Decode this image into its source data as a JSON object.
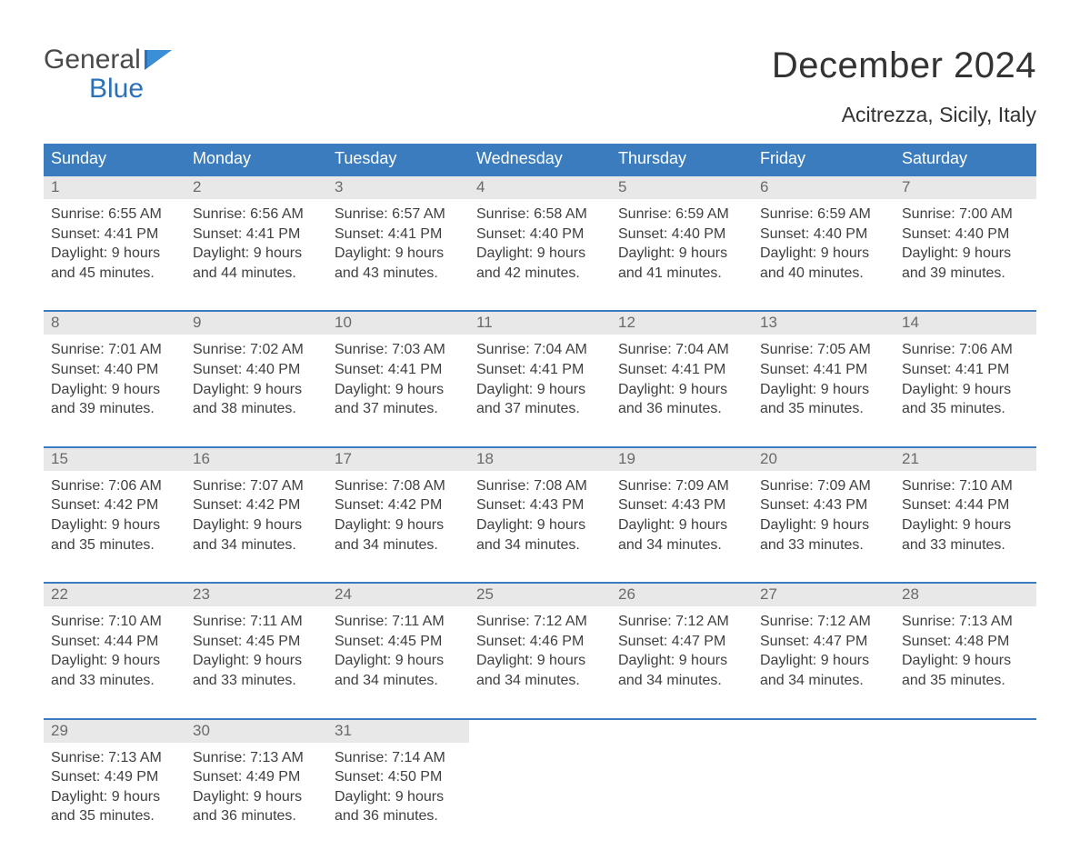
{
  "logo": {
    "line1": "General",
    "line2": "Blue"
  },
  "header": {
    "month_title": "December 2024",
    "location": "Acitrezza, Sicily, Italy"
  },
  "colors": {
    "header_bg": "#3a7cbd",
    "header_text": "#ffffff",
    "row_border": "#3a7cbd",
    "daynum_bg": "#e8e8e8",
    "daynum_text": "#6a6a6a",
    "body_text": "#404040",
    "logo_gray": "#4a4a4a",
    "logo_blue": "#2a71b8",
    "page_bg": "#ffffff"
  },
  "calendar": {
    "day_labels": [
      "Sunday",
      "Monday",
      "Tuesday",
      "Wednesday",
      "Thursday",
      "Friday",
      "Saturday"
    ],
    "weeks": [
      [
        {
          "n": "1",
          "sunrise": "Sunrise: 6:55 AM",
          "sunset": "Sunset: 4:41 PM",
          "dl1": "Daylight: 9 hours",
          "dl2": "and 45 minutes."
        },
        {
          "n": "2",
          "sunrise": "Sunrise: 6:56 AM",
          "sunset": "Sunset: 4:41 PM",
          "dl1": "Daylight: 9 hours",
          "dl2": "and 44 minutes."
        },
        {
          "n": "3",
          "sunrise": "Sunrise: 6:57 AM",
          "sunset": "Sunset: 4:41 PM",
          "dl1": "Daylight: 9 hours",
          "dl2": "and 43 minutes."
        },
        {
          "n": "4",
          "sunrise": "Sunrise: 6:58 AM",
          "sunset": "Sunset: 4:40 PM",
          "dl1": "Daylight: 9 hours",
          "dl2": "and 42 minutes."
        },
        {
          "n": "5",
          "sunrise": "Sunrise: 6:59 AM",
          "sunset": "Sunset: 4:40 PM",
          "dl1": "Daylight: 9 hours",
          "dl2": "and 41 minutes."
        },
        {
          "n": "6",
          "sunrise": "Sunrise: 6:59 AM",
          "sunset": "Sunset: 4:40 PM",
          "dl1": "Daylight: 9 hours",
          "dl2": "and 40 minutes."
        },
        {
          "n": "7",
          "sunrise": "Sunrise: 7:00 AM",
          "sunset": "Sunset: 4:40 PM",
          "dl1": "Daylight: 9 hours",
          "dl2": "and 39 minutes."
        }
      ],
      [
        {
          "n": "8",
          "sunrise": "Sunrise: 7:01 AM",
          "sunset": "Sunset: 4:40 PM",
          "dl1": "Daylight: 9 hours",
          "dl2": "and 39 minutes."
        },
        {
          "n": "9",
          "sunrise": "Sunrise: 7:02 AM",
          "sunset": "Sunset: 4:40 PM",
          "dl1": "Daylight: 9 hours",
          "dl2": "and 38 minutes."
        },
        {
          "n": "10",
          "sunrise": "Sunrise: 7:03 AM",
          "sunset": "Sunset: 4:41 PM",
          "dl1": "Daylight: 9 hours",
          "dl2": "and 37 minutes."
        },
        {
          "n": "11",
          "sunrise": "Sunrise: 7:04 AM",
          "sunset": "Sunset: 4:41 PM",
          "dl1": "Daylight: 9 hours",
          "dl2": "and 37 minutes."
        },
        {
          "n": "12",
          "sunrise": "Sunrise: 7:04 AM",
          "sunset": "Sunset: 4:41 PM",
          "dl1": "Daylight: 9 hours",
          "dl2": "and 36 minutes."
        },
        {
          "n": "13",
          "sunrise": "Sunrise: 7:05 AM",
          "sunset": "Sunset: 4:41 PM",
          "dl1": "Daylight: 9 hours",
          "dl2": "and 35 minutes."
        },
        {
          "n": "14",
          "sunrise": "Sunrise: 7:06 AM",
          "sunset": "Sunset: 4:41 PM",
          "dl1": "Daylight: 9 hours",
          "dl2": "and 35 minutes."
        }
      ],
      [
        {
          "n": "15",
          "sunrise": "Sunrise: 7:06 AM",
          "sunset": "Sunset: 4:42 PM",
          "dl1": "Daylight: 9 hours",
          "dl2": "and 35 minutes."
        },
        {
          "n": "16",
          "sunrise": "Sunrise: 7:07 AM",
          "sunset": "Sunset: 4:42 PM",
          "dl1": "Daylight: 9 hours",
          "dl2": "and 34 minutes."
        },
        {
          "n": "17",
          "sunrise": "Sunrise: 7:08 AM",
          "sunset": "Sunset: 4:42 PM",
          "dl1": "Daylight: 9 hours",
          "dl2": "and 34 minutes."
        },
        {
          "n": "18",
          "sunrise": "Sunrise: 7:08 AM",
          "sunset": "Sunset: 4:43 PM",
          "dl1": "Daylight: 9 hours",
          "dl2": "and 34 minutes."
        },
        {
          "n": "19",
          "sunrise": "Sunrise: 7:09 AM",
          "sunset": "Sunset: 4:43 PM",
          "dl1": "Daylight: 9 hours",
          "dl2": "and 34 minutes."
        },
        {
          "n": "20",
          "sunrise": "Sunrise: 7:09 AM",
          "sunset": "Sunset: 4:43 PM",
          "dl1": "Daylight: 9 hours",
          "dl2": "and 33 minutes."
        },
        {
          "n": "21",
          "sunrise": "Sunrise: 7:10 AM",
          "sunset": "Sunset: 4:44 PM",
          "dl1": "Daylight: 9 hours",
          "dl2": "and 33 minutes."
        }
      ],
      [
        {
          "n": "22",
          "sunrise": "Sunrise: 7:10 AM",
          "sunset": "Sunset: 4:44 PM",
          "dl1": "Daylight: 9 hours",
          "dl2": "and 33 minutes."
        },
        {
          "n": "23",
          "sunrise": "Sunrise: 7:11 AM",
          "sunset": "Sunset: 4:45 PM",
          "dl1": "Daylight: 9 hours",
          "dl2": "and 33 minutes."
        },
        {
          "n": "24",
          "sunrise": "Sunrise: 7:11 AM",
          "sunset": "Sunset: 4:45 PM",
          "dl1": "Daylight: 9 hours",
          "dl2": "and 34 minutes."
        },
        {
          "n": "25",
          "sunrise": "Sunrise: 7:12 AM",
          "sunset": "Sunset: 4:46 PM",
          "dl1": "Daylight: 9 hours",
          "dl2": "and 34 minutes."
        },
        {
          "n": "26",
          "sunrise": "Sunrise: 7:12 AM",
          "sunset": "Sunset: 4:47 PM",
          "dl1": "Daylight: 9 hours",
          "dl2": "and 34 minutes."
        },
        {
          "n": "27",
          "sunrise": "Sunrise: 7:12 AM",
          "sunset": "Sunset: 4:47 PM",
          "dl1": "Daylight: 9 hours",
          "dl2": "and 34 minutes."
        },
        {
          "n": "28",
          "sunrise": "Sunrise: 7:13 AM",
          "sunset": "Sunset: 4:48 PM",
          "dl1": "Daylight: 9 hours",
          "dl2": "and 35 minutes."
        }
      ],
      [
        {
          "n": "29",
          "sunrise": "Sunrise: 7:13 AM",
          "sunset": "Sunset: 4:49 PM",
          "dl1": "Daylight: 9 hours",
          "dl2": "and 35 minutes."
        },
        {
          "n": "30",
          "sunrise": "Sunrise: 7:13 AM",
          "sunset": "Sunset: 4:49 PM",
          "dl1": "Daylight: 9 hours",
          "dl2": "and 36 minutes."
        },
        {
          "n": "31",
          "sunrise": "Sunrise: 7:14 AM",
          "sunset": "Sunset: 4:50 PM",
          "dl1": "Daylight: 9 hours",
          "dl2": "and 36 minutes."
        },
        null,
        null,
        null,
        null
      ]
    ]
  }
}
